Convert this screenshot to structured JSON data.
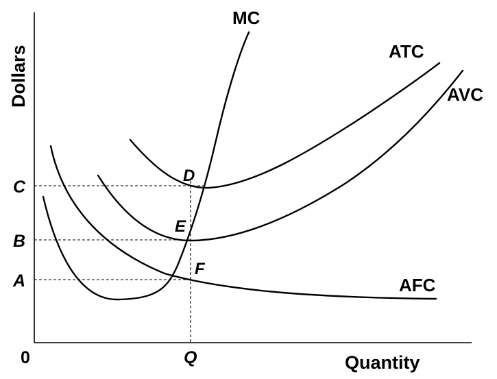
{
  "axes": {
    "y_title": "Dollars",
    "x_title": "Quantity",
    "origin": "0"
  },
  "curves": {
    "mc": "MC",
    "atc": "ATC",
    "avc": "AVC",
    "afc": "AFC"
  },
  "points": {
    "d": "D",
    "e": "E",
    "f": "F"
  },
  "ticks": {
    "y_c": "C",
    "y_b": "B",
    "y_a": "A",
    "x_q": "Q"
  }
}
